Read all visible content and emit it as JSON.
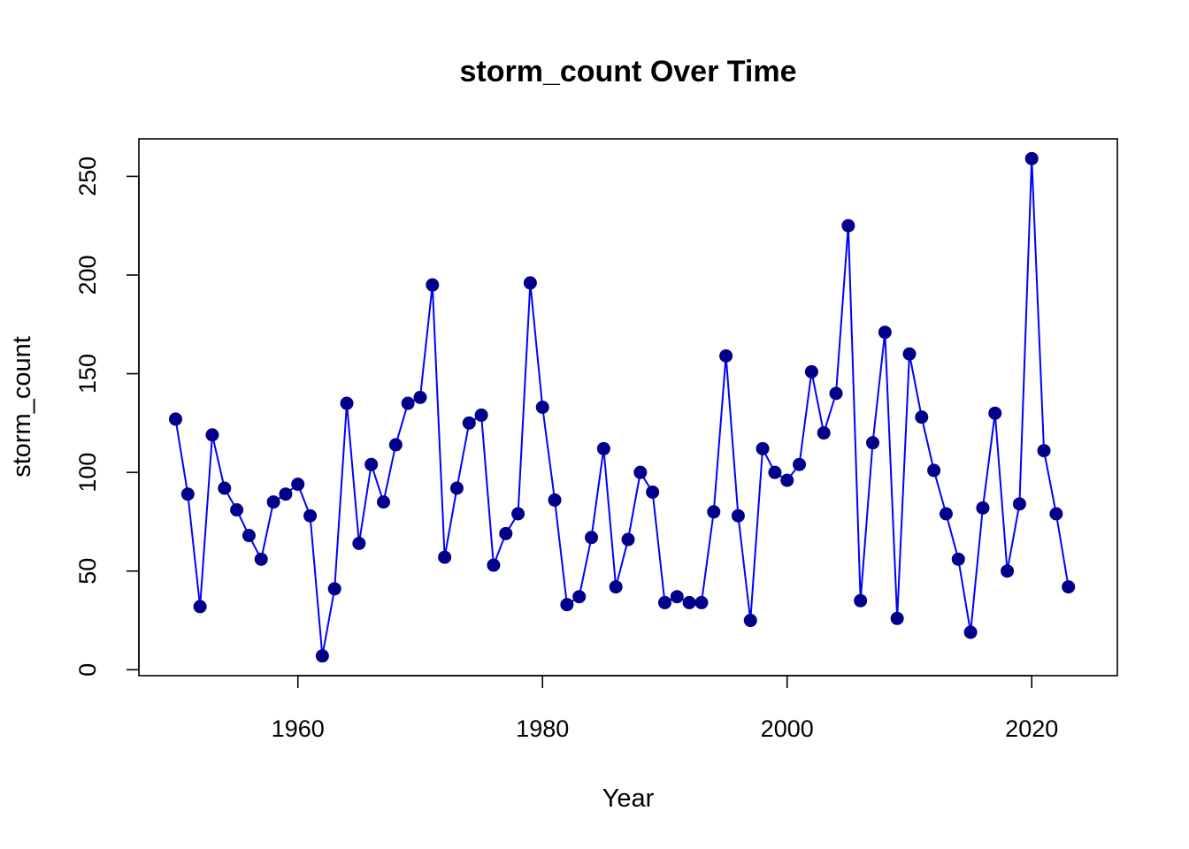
{
  "chart_data": {
    "type": "line",
    "title": "storm_count Over Time",
    "xlabel": "Year",
    "ylabel": "storm_count",
    "xlim": [
      1947,
      2027
    ],
    "ylim": [
      -3,
      269
    ],
    "x_ticks": [
      1960,
      1980,
      2000,
      2020
    ],
    "y_ticks": [
      0,
      50,
      100,
      150,
      200,
      250
    ],
    "grid": false,
    "line_color": "#0000ff",
    "point_color": "#00008b",
    "x": [
      1950,
      1951,
      1952,
      1953,
      1954,
      1955,
      1956,
      1957,
      1958,
      1959,
      1960,
      1961,
      1962,
      1963,
      1964,
      1965,
      1966,
      1967,
      1968,
      1969,
      1970,
      1971,
      1972,
      1973,
      1974,
      1975,
      1976,
      1977,
      1978,
      1979,
      1980,
      1981,
      1982,
      1983,
      1984,
      1985,
      1986,
      1987,
      1988,
      1989,
      1990,
      1991,
      1992,
      1993,
      1994,
      1995,
      1996,
      1997,
      1998,
      1999,
      2000,
      2001,
      2002,
      2003,
      2004,
      2005,
      2006,
      2007,
      2008,
      2009,
      2010,
      2011,
      2012,
      2013,
      2014,
      2015,
      2016,
      2017,
      2018,
      2019,
      2020,
      2021,
      2022,
      2023
    ],
    "y": [
      127,
      89,
      32,
      119,
      92,
      81,
      68,
      56,
      85,
      89,
      94,
      78,
      7,
      41,
      135,
      64,
      104,
      85,
      114,
      135,
      138,
      195,
      57,
      92,
      125,
      129,
      53,
      69,
      79,
      196,
      133,
      86,
      33,
      37,
      67,
      112,
      42,
      66,
      100,
      90,
      34,
      37,
      34,
      34,
      80,
      159,
      78,
      25,
      112,
      100,
      96,
      104,
      151,
      120,
      140,
      225,
      35,
      115,
      171,
      26,
      160,
      128,
      101,
      79,
      56,
      19,
      82,
      130,
      50,
      84,
      259,
      111,
      79,
      42
    ]
  }
}
